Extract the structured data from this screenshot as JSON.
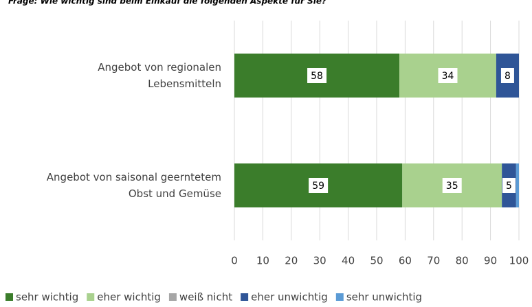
{
  "chart_data": {
    "type": "stacked-barh",
    "title": "Frage: Wie wichtig sind beim Einkauf die folgenden Aspekte für Sie?",
    "categories": [
      [
        "Angebot von regionalen",
        "Lebensmitteln"
      ],
      [
        "Angebot von saisonal geerntetem",
        "Obst und Gemüse"
      ]
    ],
    "series": [
      {
        "name": "sehr wichtig",
        "color": "#3b7d2b",
        "values": [
          58,
          59
        ]
      },
      {
        "name": "eher wichtig",
        "color": "#a9d18e",
        "values": [
          34,
          35
        ]
      },
      {
        "name": "weiß nicht",
        "color": "#a6a6a6",
        "values": [
          0,
          0
        ]
      },
      {
        "name": "eher unwichtig",
        "color": "#2f5597",
        "values": [
          8,
          5
        ]
      },
      {
        "name": "sehr unwichtig",
        "color": "#5b9bd5",
        "values": [
          0,
          1
        ]
      }
    ],
    "xlim": [
      0,
      100
    ],
    "xticks": [
      0,
      10,
      20,
      30,
      40,
      50,
      60,
      70,
      80,
      90,
      100
    ],
    "grid": true,
    "legend": "bottom"
  }
}
